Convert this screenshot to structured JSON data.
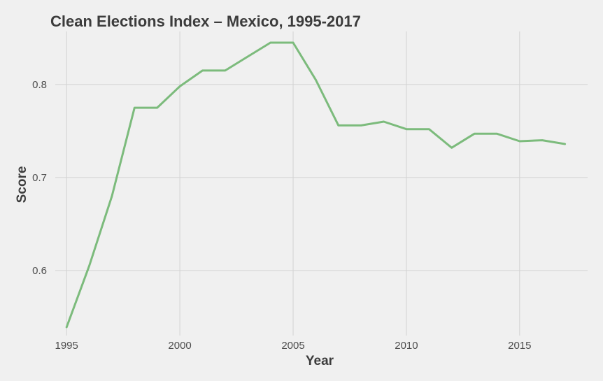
{
  "chart_data": {
    "type": "line",
    "title": "Clean Elections Index – Mexico, 1995-2017",
    "xlabel": "Year",
    "ylabel": "Score",
    "x": [
      1995,
      1996,
      1997,
      1998,
      1999,
      2000,
      2001,
      2002,
      2003,
      2004,
      2005,
      2006,
      2007,
      2008,
      2009,
      2010,
      2011,
      2012,
      2013,
      2014,
      2015,
      2016,
      2017
    ],
    "series": [
      {
        "values": [
          0.539,
          0.605,
          0.68,
          0.775,
          0.775,
          0.798,
          0.815,
          0.815,
          0.83,
          0.845,
          0.845,
          0.805,
          0.756,
          0.756,
          0.76,
          0.752,
          0.752,
          0.732,
          0.747,
          0.747,
          0.739,
          0.74,
          0.736
        ]
      }
    ],
    "x_ticks": [
      "1995",
      "2000",
      "2005",
      "2010",
      "2015"
    ],
    "y_ticks": [
      "0.6",
      "0.7",
      "0.8"
    ],
    "xlim": [
      1994.5,
      2018.0
    ],
    "ylim": [
      0.53,
      0.857
    ],
    "grid": true,
    "colors": {
      "line": "#7cbb7c",
      "background": "#f0f0f0",
      "grid": "#d2d2d2"
    }
  }
}
